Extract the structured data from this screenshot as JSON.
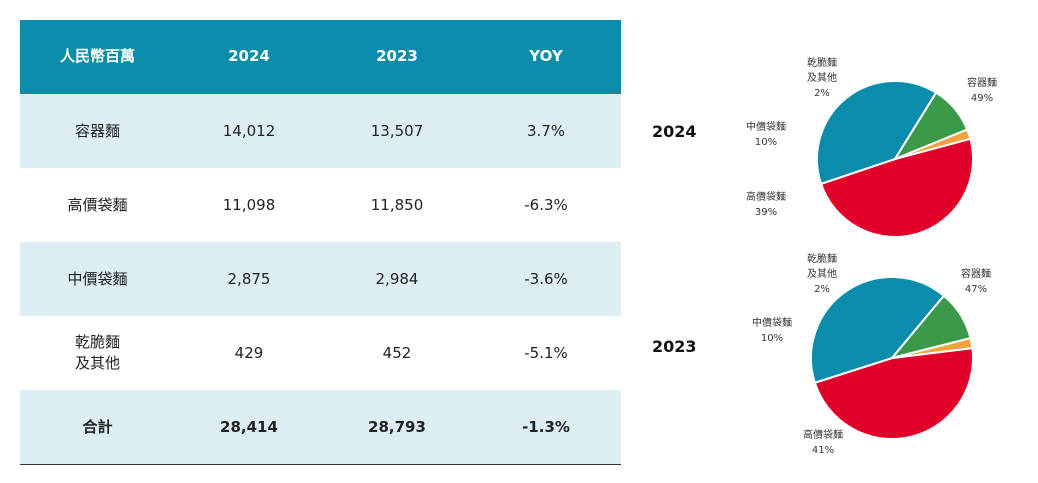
{
  "table": {
    "headers": [
      "人民幣百萬",
      "2024",
      "2023",
      "YOY"
    ],
    "rows": [
      {
        "name": "容器麵",
        "y2024": "14,012",
        "y2023": "13,507",
        "yoy": "3.7%"
      },
      {
        "name": "高價袋麵",
        "y2024": "11,098",
        "y2023": "11,850",
        "yoy": "-6.3%"
      },
      {
        "name": "中價袋麵",
        "y2024": "2,875",
        "y2023": "2,984",
        "yoy": "-3.6%"
      },
      {
        "name": "乾脆麵\n及其他",
        "y2024": "429",
        "y2023": "452",
        "yoy": "-5.1%"
      },
      {
        "name": "合計",
        "y2024": "28,414",
        "y2023": "28,793",
        "yoy": "-1.3%"
      }
    ]
  },
  "chart_data": [
    {
      "type": "pie",
      "title": "2024",
      "slices": [
        {
          "label": "容器麵",
          "value": 49,
          "display": "49%",
          "color": "#e0002a"
        },
        {
          "label": "高價袋麵",
          "value": 39,
          "display": "39%",
          "color": "#0a8caa"
        },
        {
          "label": "中價袋麵",
          "value": 10,
          "display": "10%",
          "color": "#3a9a4a"
        },
        {
          "label": "乾脆麵\n及其他",
          "value": 2,
          "display": "2%",
          "color": "#f2a23c"
        }
      ]
    },
    {
      "type": "pie",
      "title": "2023",
      "slices": [
        {
          "label": "容器麵",
          "value": 47,
          "display": "47%",
          "color": "#e0002a"
        },
        {
          "label": "高價袋麵",
          "value": 41,
          "display": "41%",
          "color": "#0a8caa"
        },
        {
          "label": "中價袋麵",
          "value": 10,
          "display": "10%",
          "color": "#3a9a4a"
        },
        {
          "label": "乾脆麵\n及其他",
          "value": 2,
          "display": "2%",
          "color": "#f2a23c"
        }
      ]
    }
  ]
}
